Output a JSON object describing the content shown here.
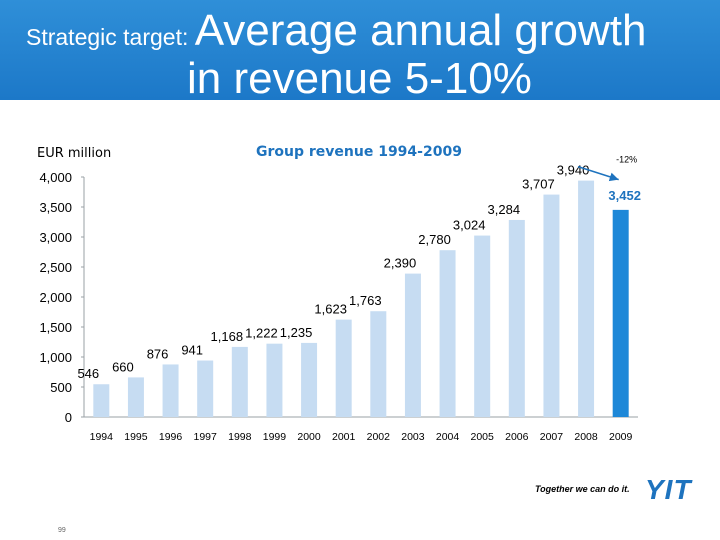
{
  "title": {
    "line1_small": "Strategic target: ",
    "line1_big": "Average annual growth",
    "line2": "in revenue 5-10%"
  },
  "colors": {
    "header_bg": "#1c78c8",
    "bar_light": "#c6dcf2",
    "bar_highlight": "#1e88d8",
    "accent_text": "#1e73be"
  },
  "chart_data": {
    "type": "bar",
    "title": "Group revenue 1994-2009",
    "ylabel": "EUR million",
    "categories": [
      "1994",
      "1995",
      "1996",
      "1997",
      "1998",
      "1999",
      "2000",
      "2001",
      "2002",
      "2003",
      "2004",
      "2005",
      "2006",
      "2007",
      "2008",
      "2009"
    ],
    "values": [
      546,
      660,
      876,
      941,
      1168,
      1222,
      1235,
      1623,
      1763,
      2390,
      2780,
      3024,
      3284,
      3707,
      3940,
      3452
    ],
    "data_labels": [
      "546",
      "660",
      "876",
      "941",
      "1,168",
      "1,222",
      "1,235",
      "1,623",
      "1,763",
      "2,390",
      "2,780",
      "3,024",
      "3,284",
      "3,707",
      "3,940",
      "3,452"
    ],
    "highlight_index": 15,
    "ylim": [
      0,
      4000
    ],
    "yticks": [
      0,
      500,
      1000,
      1500,
      2000,
      2500,
      3000,
      3500,
      4000
    ],
    "ytick_labels": [
      "0",
      "500",
      "1,000",
      "1,500",
      "2,000",
      "2,500",
      "3,000",
      "3,500",
      "4,000"
    ],
    "annotation": {
      "text": "-12%"
    },
    "grid": false
  },
  "footer": {
    "tagline": "Together we can do it.",
    "logo": "YIT",
    "page_mark": "99"
  }
}
